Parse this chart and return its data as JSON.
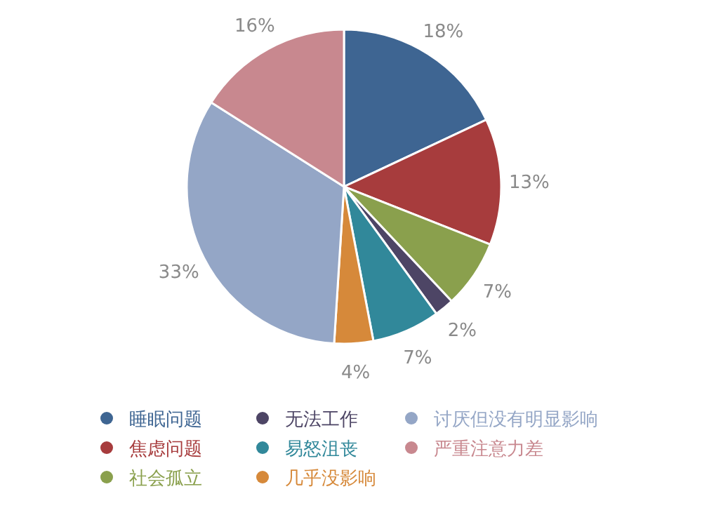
{
  "chart_data": {
    "type": "pie",
    "categories": [
      "睡眠问题",
      "焦虑问题",
      "社会孤立",
      "无法工作",
      "易怒沮丧",
      "几乎没影响",
      "讨厌但没有明显影响",
      "严重注意力差"
    ],
    "values": [
      18,
      13,
      7,
      2,
      7,
      4,
      33,
      16
    ],
    "colors": [
      "#3e6592",
      "#a73c3d",
      "#8aa04d",
      "#4d4565",
      "#31889a",
      "#d6893a",
      "#94a6c6",
      "#c8888f"
    ],
    "value_labels": [
      "18%",
      "13%",
      "7%",
      "2%",
      "7%",
      "4%",
      "33%",
      "16%"
    ],
    "legend": "bottom"
  }
}
